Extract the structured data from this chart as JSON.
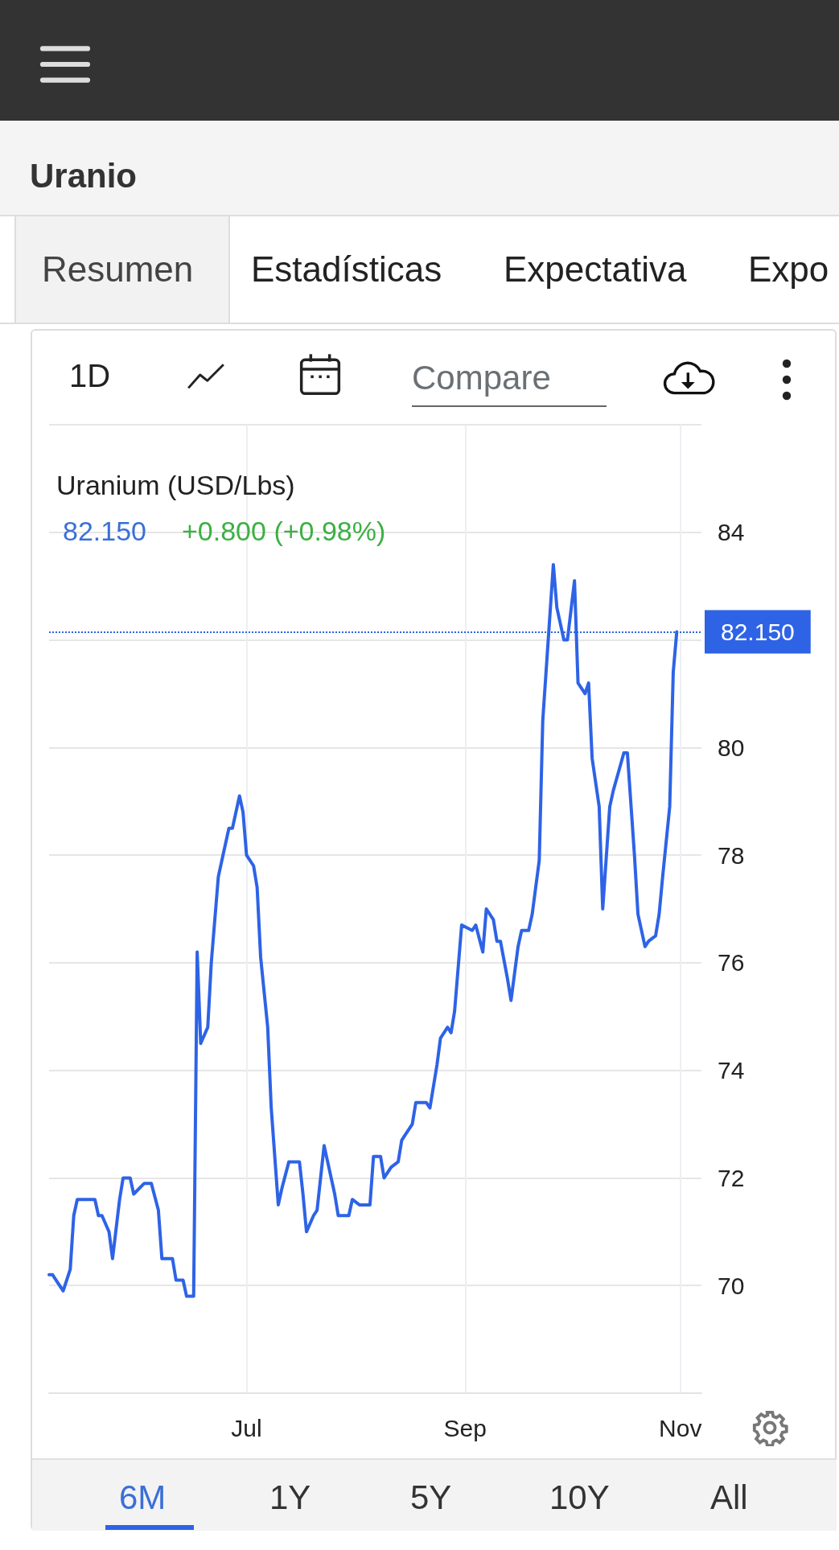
{
  "chart_data": {
    "type": "line",
    "title": "Uranio",
    "subtitle": "Uranium (USD/Lbs)",
    "annotations": [
      "82.150",
      "+0.800 (+0.98%)",
      "Resumen",
      "Estadísticas",
      "Expectativa",
      "Expo",
      "1D",
      "Compare",
      "6M",
      "1Y",
      "5Y",
      "10Y",
      "All"
    ],
    "x": [
      "--05-06",
      "--05-07",
      "--05-08",
      "--05-10",
      "--05-12",
      "--05-13",
      "--05-14",
      "--05-19",
      "--05-20",
      "--05-21",
      "--05-23",
      "--05-24",
      "--05-26",
      "--05-27",
      "--05-29",
      "--05-30",
      "--06-02",
      "--06-03",
      "--06-04",
      "--06-06",
      "--06-07",
      "--06-10",
      "--06-11",
      "--06-13",
      "--06-14",
      "--06-16",
      "--06-17",
      "--06-18",
      "--06-20",
      "--06-21",
      "--06-23",
      "--06-24",
      "--06-26",
      "--06-27",
      "--06-29",
      "--06-30",
      "--07-01",
      "--07-03",
      "--07-04",
      "--07-05",
      "--07-07",
      "--07-08",
      "--07-10",
      "--07-11",
      "--07-13",
      "--07-16",
      "--07-17",
      "--07-18",
      "--07-20",
      "--07-21",
      "--07-23",
      "--07-24",
      "--07-26",
      "--07-27",
      "--07-28",
      "--07-30",
      "--07-31",
      "--08-02",
      "--08-05",
      "--08-06",
      "--08-08",
      "--08-09",
      "--08-11",
      "--08-13",
      "--08-14",
      "--08-15",
      "--08-17",
      "--08-18",
      "--08-21",
      "--08-22",
      "--08-24",
      "--08-25",
      "--08-27",
      "--08-28",
      "--08-29",
      "--08-31",
      "--09-03",
      "--09-04",
      "--09-06",
      "--09-07",
      "--09-09",
      "--09-10",
      "--09-11",
      "--09-13",
      "--09-14",
      "--09-16",
      "--09-17",
      "--09-19",
      "--09-20",
      "--09-22",
      "--09-23",
      "--09-26",
      "--09-27",
      "--09-29",
      "--09-30",
      "--10-02",
      "--10-03",
      "--10-05",
      "--10-06",
      "--10-07",
      "--10-09",
      "--10-10",
      "--10-12",
      "--10-13",
      "--10-16",
      "--10-17",
      "--10-19",
      "--10-20",
      "--10-22",
      "--10-23",
      "--10-25",
      "--10-26",
      "--10-27",
      "--10-29",
      "--10-30",
      "--10-31"
    ],
    "series": [
      {
        "color": "#2e63e6",
        "values": [
          70.2,
          70.2,
          70.1,
          69.9,
          70.3,
          71.3,
          71.6,
          71.6,
          71.3,
          71.3,
          71.0,
          70.5,
          71.6,
          72.0,
          72.0,
          71.7,
          71.9,
          71.9,
          71.9,
          71.4,
          70.5,
          70.5,
          70.1,
          70.1,
          69.8,
          69.8,
          76.2,
          74.5,
          74.8,
          76.0,
          77.6,
          77.9,
          78.5,
          78.5,
          79.1,
          78.8,
          78.0,
          77.8,
          77.4,
          76.1,
          74.8,
          73.3,
          71.5,
          71.8,
          72.3,
          72.3,
          71.7,
          71.0,
          71.3,
          71.4,
          72.6,
          72.3,
          71.7,
          71.3,
          71.3,
          71.3,
          71.6,
          71.5,
          71.5,
          72.4,
          72.4,
          72.0,
          72.2,
          72.3,
          72.7,
          72.8,
          73.0,
          73.4,
          73.4,
          73.3,
          74.1,
          74.6,
          74.8,
          74.7,
          75.1,
          76.7,
          76.6,
          76.7,
          76.2,
          77.0,
          76.8,
          76.4,
          76.4,
          75.7,
          75.3,
          76.3,
          76.6,
          76.6,
          76.9,
          77.9,
          80.5,
          83.4,
          82.6,
          82.0,
          82.0,
          83.1,
          81.2,
          81.0,
          81.2,
          79.8,
          78.9,
          77.0,
          78.9,
          79.2,
          79.9,
          79.9,
          78.0,
          76.9,
          76.3,
          76.4,
          76.5,
          76.9,
          77.6,
          78.9,
          81.4,
          82.15
        ]
      }
    ],
    "xlim": [
      "--05-06",
      "--11-07"
    ],
    "xticks": [
      {
        "value": "--07-01",
        "label": "Jul"
      },
      {
        "value": "--09-01",
        "label": "Sep"
      },
      {
        "value": "--11-01",
        "label": "Nov"
      }
    ],
    "ylim": [
      68,
      86
    ],
    "yticks": [
      {
        "value": 68,
        "label": null
      },
      70,
      72,
      74,
      76,
      78,
      80,
      {
        "value": 82,
        "label": null
      },
      84,
      {
        "value": 86,
        "label": null
      }
    ],
    "ref_lines": [
      {
        "axis": "y",
        "value": 82.15,
        "label": "82.150",
        "color": "#2e63e6",
        "line_style": "dotted"
      }
    ],
    "grid": true,
    "marker": "none",
    "line_style": "solid"
  }
}
